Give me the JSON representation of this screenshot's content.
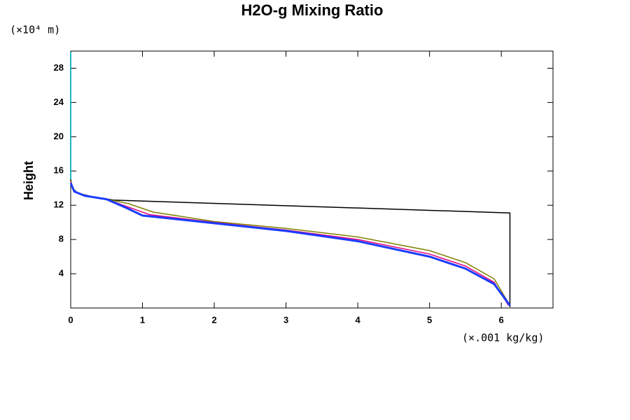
{
  "chart_data": {
    "type": "line",
    "title": "H2O-g Mixing Ratio",
    "y_label": "Height",
    "y_unit": "(×10⁴ m)",
    "x_unit": "(×.001 kg/kg)",
    "xlim": [
      0,
      6.72
    ],
    "ylim": [
      0,
      30
    ],
    "xticks": [
      0,
      1,
      2,
      3,
      4,
      5,
      6
    ],
    "yticks": [
      4,
      8,
      12,
      16,
      20,
      24,
      28
    ],
    "series": [
      {
        "color": "#000000",
        "x": [
          0,
          0,
          0.02,
          0.1,
          0.3,
          0.6,
          6.12,
          6.12
        ],
        "values": [
          29.9,
          15,
          14,
          13.4,
          13,
          12.6,
          11.1,
          0.1
        ]
      },
      {
        "color": "#00c8d8",
        "x": [
          0,
          0
        ],
        "values": [
          29.9,
          15
        ]
      },
      {
        "color": "#808000",
        "x": [
          0,
          0.05,
          0.2,
          0.5,
          0.8,
          1.15,
          2,
          3,
          4,
          5,
          5.5,
          5.9,
          6.12
        ],
        "values": [
          14.8,
          13.6,
          13.1,
          12.7,
          12.2,
          11.2,
          10.1,
          9.3,
          8.3,
          6.7,
          5.3,
          3.4,
          0.3
        ]
      },
      {
        "color": "#e0007f",
        "x": [
          0,
          0.05,
          0.2,
          0.5,
          0.8,
          1.1,
          2,
          3,
          4,
          5,
          5.5,
          5.9,
          6.1
        ],
        "values": [
          14.7,
          13.6,
          13.1,
          12.7,
          11.8,
          10.9,
          10,
          9.1,
          8,
          6.3,
          4.9,
          3,
          0.3
        ]
      },
      {
        "color": "#1a3cff",
        "x": [
          0,
          0.05,
          0.2,
          0.5,
          0.8,
          1,
          2,
          3,
          4,
          5,
          5.5,
          5.9,
          6.12
        ],
        "values": [
          14.6,
          13.6,
          13.1,
          12.7,
          11.6,
          10.8,
          9.9,
          9,
          7.8,
          6,
          4.6,
          2.8,
          0.3
        ]
      }
    ]
  }
}
